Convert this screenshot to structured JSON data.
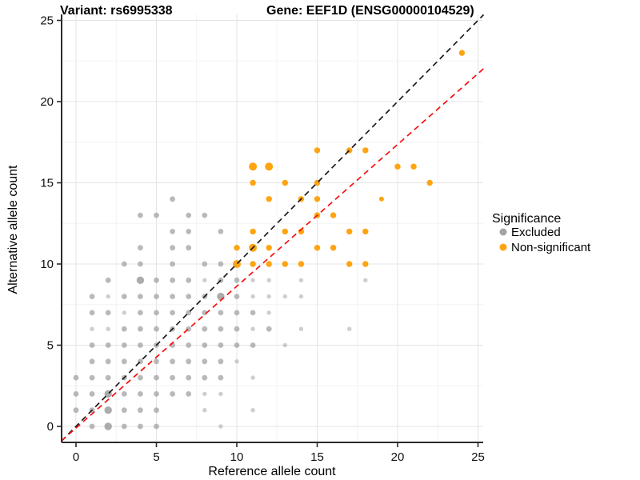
{
  "window": {
    "title_left": "Variant: rs6995338",
    "title_right": "Gene: EEF1D (ENSG00000104529)"
  },
  "axes": {
    "x_label": "Reference allele count",
    "y_label": "Alternative allele count",
    "x_ticks": [
      0,
      5,
      10,
      15,
      20,
      25
    ],
    "y_ticks": [
      0,
      5,
      10,
      15,
      20,
      25
    ],
    "minor_ticks": [
      2.5,
      7.5,
      12.5,
      17.5,
      22.5
    ]
  },
  "legend": {
    "title": "Significance",
    "items": [
      {
        "label": "Excluded",
        "color": "#a3a3a3"
      },
      {
        "label": "Non-significant",
        "color": "#ffa411"
      }
    ]
  },
  "colors": {
    "grid_major": "#e4e4e4",
    "grid_minor": "#f3f3f3",
    "axis_line": "#2b2b2b",
    "identity_line": "#1a1a1a",
    "fit_line": "#f50f0f"
  },
  "chart_data": {
    "type": "scatter",
    "title": "Variant: rs6995338 / Gene: EEF1D (ENSG00000104529)",
    "xlabel": "Reference allele count",
    "ylabel": "Alternative allele count",
    "x_domain": [
      -0.9,
      25.35
    ],
    "y_domain": [
      -0.99,
      25.6
    ],
    "grid": "on",
    "legend_position": "right",
    "series": [
      {
        "name": "Excluded",
        "color": "#9e9e9e",
        "points": [
          [
            1,
            0,
            2
          ],
          [
            2,
            0,
            3
          ],
          [
            3,
            0,
            2
          ],
          [
            4,
            0,
            2
          ],
          [
            5,
            0,
            2
          ],
          [
            9,
            0,
            1
          ],
          [
            0,
            1,
            2
          ],
          [
            1,
            1,
            2
          ],
          [
            2,
            1,
            3
          ],
          [
            3,
            1,
            2
          ],
          [
            4,
            1,
            2
          ],
          [
            5,
            1,
            2
          ],
          [
            8,
            1,
            1
          ],
          [
            11,
            1,
            1
          ],
          [
            0,
            2,
            2
          ],
          [
            1,
            2,
            2
          ],
          [
            2,
            2,
            3
          ],
          [
            3,
            2,
            2
          ],
          [
            4,
            2,
            2
          ],
          [
            5,
            2,
            2
          ],
          [
            6,
            2,
            2
          ],
          [
            7,
            2,
            2
          ],
          [
            8,
            2,
            1
          ],
          [
            9,
            2,
            1
          ],
          [
            0,
            3,
            2
          ],
          [
            1,
            3,
            2
          ],
          [
            2,
            3,
            2
          ],
          [
            3,
            3,
            2
          ],
          [
            4,
            3,
            2
          ],
          [
            5,
            3,
            2
          ],
          [
            6,
            3,
            2
          ],
          [
            7,
            3,
            2
          ],
          [
            8,
            3,
            2
          ],
          [
            9,
            3,
            2
          ],
          [
            11,
            3,
            1
          ],
          [
            1,
            4,
            2
          ],
          [
            2,
            4,
            2
          ],
          [
            3,
            4,
            2
          ],
          [
            4,
            4,
            2
          ],
          [
            5,
            4,
            2
          ],
          [
            6,
            4,
            2
          ],
          [
            7,
            4,
            2
          ],
          [
            8,
            4,
            2
          ],
          [
            9,
            4,
            2
          ],
          [
            10,
            4,
            1
          ],
          [
            1,
            5,
            2
          ],
          [
            2,
            5,
            2
          ],
          [
            3,
            5,
            2
          ],
          [
            4,
            5,
            2
          ],
          [
            5,
            5,
            2
          ],
          [
            6,
            5,
            2
          ],
          [
            7,
            5,
            2
          ],
          [
            8,
            5,
            2
          ],
          [
            9,
            5,
            2
          ],
          [
            10,
            5,
            2
          ],
          [
            11,
            5,
            2
          ],
          [
            13,
            5,
            1
          ],
          [
            1,
            6,
            1
          ],
          [
            2,
            6,
            1
          ],
          [
            3,
            6,
            2
          ],
          [
            4,
            6,
            2
          ],
          [
            5,
            6,
            2
          ],
          [
            6,
            6,
            2
          ],
          [
            7,
            6,
            2
          ],
          [
            8,
            6,
            2
          ],
          [
            9,
            6,
            2
          ],
          [
            10,
            6,
            2
          ],
          [
            11,
            6,
            1
          ],
          [
            12,
            6,
            2
          ],
          [
            14,
            6,
            1
          ],
          [
            17,
            6,
            1
          ],
          [
            1,
            7,
            2
          ],
          [
            2,
            7,
            2
          ],
          [
            3,
            7,
            1
          ],
          [
            4,
            7,
            2
          ],
          [
            5,
            7,
            2
          ],
          [
            6,
            7,
            2
          ],
          [
            7,
            7,
            2
          ],
          [
            8,
            7,
            2
          ],
          [
            9,
            7,
            2
          ],
          [
            10,
            7,
            2
          ],
          [
            11,
            7,
            2
          ],
          [
            12,
            7,
            1
          ],
          [
            1,
            8,
            2
          ],
          [
            2,
            8,
            1
          ],
          [
            3,
            8,
            2
          ],
          [
            4,
            8,
            2
          ],
          [
            5,
            8,
            2
          ],
          [
            6,
            8,
            2
          ],
          [
            7,
            8,
            2
          ],
          [
            8,
            8,
            2
          ],
          [
            9,
            8,
            3
          ],
          [
            10,
            8,
            2
          ],
          [
            11,
            8,
            1
          ],
          [
            12,
            8,
            1
          ],
          [
            13,
            8,
            1
          ],
          [
            14,
            8,
            1
          ],
          [
            2,
            9,
            2
          ],
          [
            4,
            9,
            3
          ],
          [
            5,
            9,
            2
          ],
          [
            6,
            9,
            2
          ],
          [
            7,
            9,
            2
          ],
          [
            8,
            9,
            1
          ],
          [
            9,
            9,
            2
          ],
          [
            10,
            9,
            2
          ],
          [
            11,
            9,
            1
          ],
          [
            12,
            9,
            1
          ],
          [
            14,
            9,
            1
          ],
          [
            18,
            9,
            1
          ],
          [
            3,
            10,
            2
          ],
          [
            4,
            10,
            2
          ],
          [
            6,
            10,
            2
          ],
          [
            8,
            10,
            2
          ],
          [
            9,
            10,
            2
          ],
          [
            4,
            11,
            2
          ],
          [
            6,
            11,
            2
          ],
          [
            7,
            11,
            2
          ],
          [
            6,
            12,
            2
          ],
          [
            7,
            12,
            2
          ],
          [
            9,
            12,
            2
          ],
          [
            4,
            13,
            2
          ],
          [
            5,
            13,
            2
          ],
          [
            7,
            13,
            2
          ],
          [
            8,
            13,
            2
          ],
          [
            6,
            14,
            2
          ]
        ]
      },
      {
        "name": "Non-significant",
        "color": "#ffa411",
        "points": [
          [
            10,
            10,
            3
          ],
          [
            11,
            10,
            2
          ],
          [
            12,
            10,
            2
          ],
          [
            13,
            10,
            2
          ],
          [
            14,
            10,
            2
          ],
          [
            17,
            10,
            2
          ],
          [
            18,
            10,
            2
          ],
          [
            10,
            11,
            2
          ],
          [
            11,
            11,
            3
          ],
          [
            12,
            11,
            2
          ],
          [
            15,
            11,
            2
          ],
          [
            16,
            11,
            2
          ],
          [
            11,
            12,
            2
          ],
          [
            13,
            12,
            2
          ],
          [
            14,
            12,
            2
          ],
          [
            17,
            12,
            2
          ],
          [
            18,
            12,
            2
          ],
          [
            15,
            13,
            2
          ],
          [
            16,
            13,
            2
          ],
          [
            12,
            14,
            2
          ],
          [
            14,
            14,
            2
          ],
          [
            15,
            14,
            2
          ],
          [
            19,
            14,
            1
          ],
          [
            11,
            15,
            2
          ],
          [
            13,
            15,
            2
          ],
          [
            15,
            15,
            2
          ],
          [
            22,
            15,
            2
          ],
          [
            11,
            16,
            3
          ],
          [
            12,
            16,
            3
          ],
          [
            20,
            16,
            2
          ],
          [
            21,
            16,
            2
          ],
          [
            15,
            17,
            2
          ],
          [
            17,
            17,
            2
          ],
          [
            18,
            17,
            2
          ],
          [
            24,
            23,
            2
          ]
        ]
      }
    ],
    "lines": [
      {
        "name": "identity",
        "slope": 1,
        "intercept": 0,
        "color": "#1a1a1a",
        "style": "dashed"
      },
      {
        "name": "fit",
        "slope": 0.873,
        "intercept": -0.1,
        "color": "#f50f0f",
        "style": "dashed"
      }
    ]
  }
}
